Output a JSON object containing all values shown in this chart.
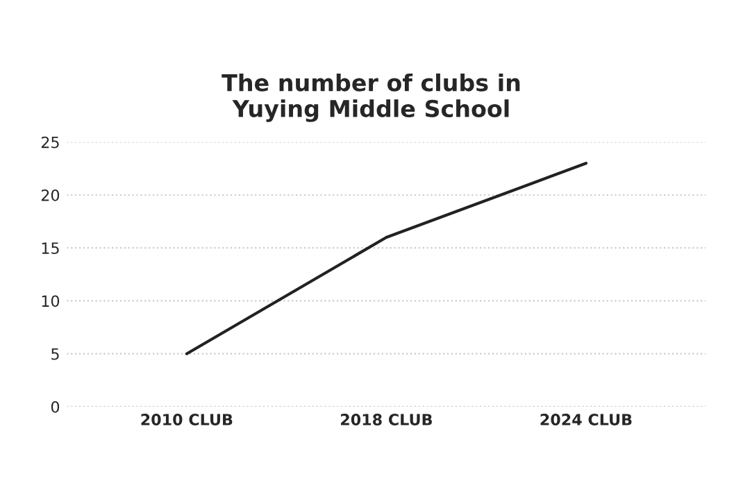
{
  "chart_data": {
    "type": "line",
    "title": "The number of clubs in\nYuying Middle School",
    "categories": [
      "2010 CLUB",
      "2018 CLUB",
      "2024 CLUB"
    ],
    "series": [
      {
        "color": "#222222",
        "values": [
          5,
          16,
          23
        ]
      }
    ],
    "ylim": [
      0,
      25
    ],
    "yticks": [
      0,
      5,
      10,
      15,
      20,
      25
    ],
    "grid": "y",
    "line_style": "solid"
  }
}
